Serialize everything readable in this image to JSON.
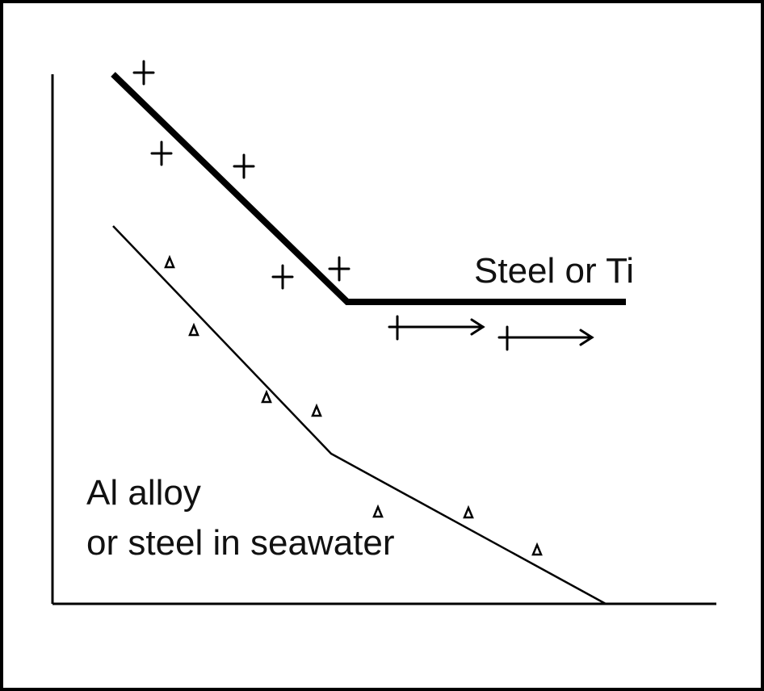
{
  "labels": {
    "upper_curve": "Steel or Ti",
    "lower_curve": [
      "Al alloy",
      "or steel in seawater"
    ]
  }
}
